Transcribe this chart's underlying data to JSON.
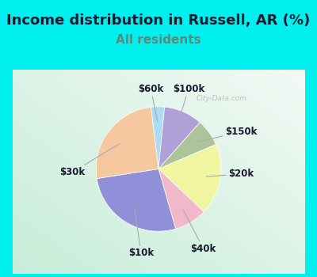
{
  "title": "Income distribution in Russell, AR (%)",
  "subtitle": "All residents",
  "labels": [
    "$60k",
    "$100k",
    "$150k",
    "$20k",
    "$40k",
    "$10k",
    "$30k"
  ],
  "values": [
    3.5,
    10.0,
    7.0,
    18.5,
    8.5,
    27.0,
    25.5
  ],
  "colors": [
    "#aaddf5",
    "#b0a0d8",
    "#adc49a",
    "#f0f5a0",
    "#f0b8c8",
    "#9090d8",
    "#f5c8a0"
  ],
  "title_fontsize": 13,
  "subtitle_fontsize": 11,
  "title_color": "#1a1a2e",
  "subtitle_color": "#5a8a7a",
  "background_outer": "#00f0f0",
  "startangle": 97,
  "label_fontsize": 8.5
}
